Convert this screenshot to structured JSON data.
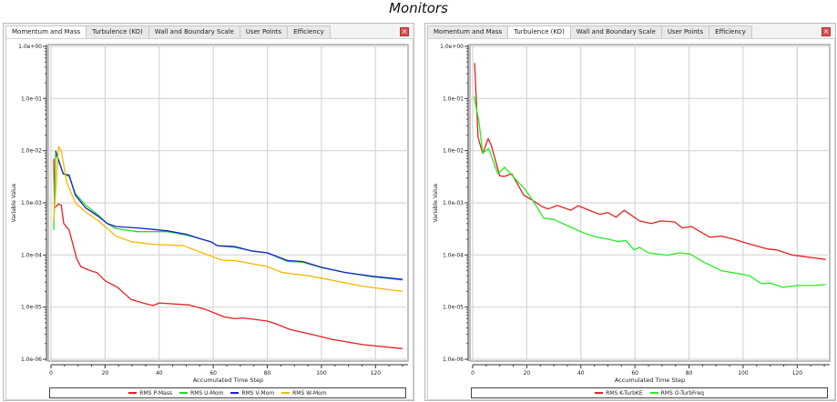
{
  "title": "Monitors",
  "tabs": [
    "Momentum and Mass",
    "Turbulence (KO)",
    "Wall and Boundary Scale",
    "User Points",
    "Efficiency"
  ],
  "chart_data": [
    {
      "type": "line",
      "active_tab": 0,
      "xlabel": "Accumulated Time Step",
      "ylabel": "Variable Value",
      "xlim": [
        0,
        131
      ],
      "ylim": [
        1e-06,
        1
      ],
      "yscale": "log",
      "xticks": [
        0,
        20,
        40,
        60,
        80,
        100,
        120
      ],
      "yticks": [
        "1.0e+00",
        "1.0e-01",
        "1.0e-02",
        "1.0e-03",
        "1.0e-04",
        "1.0e-05",
        "1.0e-06"
      ],
      "grid": true,
      "legend": "bottom",
      "series": [
        {
          "name": "RMS P-Mass",
          "color": "#e8201e",
          "points": [
            [
              1,
              0.007
            ],
            [
              1.3,
              0.0008
            ],
            [
              2.8,
              0.00095
            ],
            [
              3.8,
              0.0009
            ],
            [
              4.7,
              0.0004
            ],
            [
              6.7,
              0.0003
            ],
            [
              9.5,
              8.5e-05
            ],
            [
              11,
              6e-05
            ],
            [
              14.5,
              5e-05
            ],
            [
              17,
              4.6e-05
            ],
            [
              20,
              3.2e-05
            ],
            [
              24.6,
              2.4e-05
            ],
            [
              29.6,
              1.4e-05
            ],
            [
              34,
              1.2e-05
            ],
            [
              37.7,
              1.07e-05
            ],
            [
              40,
              1.2e-05
            ],
            [
              51,
              1.1e-05
            ],
            [
              57.2,
              9e-06
            ],
            [
              64,
              6.5e-06
            ],
            [
              68,
              6e-06
            ],
            [
              71,
              6.2e-06
            ],
            [
              80,
              5.4e-06
            ],
            [
              83,
              4.8e-06
            ],
            [
              88.5,
              3.7e-06
            ],
            [
              97.6,
              2.9e-06
            ],
            [
              104,
              2.4e-06
            ],
            [
              115.5,
              1.9e-06
            ],
            [
              130,
              1.6e-06
            ]
          ]
        },
        {
          "name": "RMS U-Mom",
          "color": "#22dd22",
          "points": [
            [
              1,
              0.0003
            ],
            [
              1.7,
              0.009
            ],
            [
              4.5,
              0.0036
            ],
            [
              6.7,
              0.0032
            ],
            [
              9,
              0.0015
            ],
            [
              12.8,
              0.0009
            ],
            [
              17.5,
              0.00058
            ],
            [
              20.8,
              0.0004
            ],
            [
              24,
              0.00032
            ],
            [
              32,
              0.00028
            ],
            [
              37.7,
              0.00028
            ],
            [
              43,
              0.00028
            ],
            [
              50,
              0.00024
            ],
            [
              54.5,
              0.00021
            ],
            [
              59,
              0.00018
            ],
            [
              61.6,
              0.00015
            ],
            [
              68,
              0.00014
            ],
            [
              74,
              0.00012
            ],
            [
              80,
              0.00011
            ],
            [
              87.5,
              7.5e-05
            ],
            [
              93,
              7.3e-05
            ],
            [
              100,
              5.7e-05
            ],
            [
              109,
              4.6e-05
            ],
            [
              119,
              3.8e-05
            ],
            [
              130,
              3.3e-05
            ]
          ]
        },
        {
          "name": "RMS V-Mom",
          "color": "#1a22cc",
          "points": [
            [
              1.7,
              0.01
            ],
            [
              4.5,
              0.0036
            ],
            [
              6.7,
              0.0034
            ],
            [
              9,
              0.0014
            ],
            [
              12.8,
              0.0008
            ],
            [
              17.5,
              0.00055
            ],
            [
              20.8,
              0.0004
            ],
            [
              24,
              0.00035
            ],
            [
              32,
              0.00033
            ],
            [
              37.7,
              0.00031
            ],
            [
              43,
              0.00029
            ],
            [
              50,
              0.00025
            ],
            [
              54.5,
              0.00021
            ],
            [
              59,
              0.00018
            ],
            [
              61.6,
              0.00015
            ],
            [
              68,
              0.000145
            ],
            [
              74,
              0.00012
            ],
            [
              80,
              0.00011
            ],
            [
              87.5,
              7.8e-05
            ],
            [
              93,
              7.5e-05
            ],
            [
              100,
              5.8e-05
            ],
            [
              109,
              4.6e-05
            ],
            [
              119,
              3.9e-05
            ],
            [
              130,
              3.4e-05
            ]
          ]
        },
        {
          "name": "RMS W-Mom",
          "color": "#f5b800",
          "points": [
            [
              1,
              0.00045
            ],
            [
              2.8,
              0.012
            ],
            [
              3.8,
              0.01
            ],
            [
              5.7,
              0.0026
            ],
            [
              9,
              0.001
            ],
            [
              12.8,
              0.00067
            ],
            [
              17.5,
              0.00045
            ],
            [
              24,
              0.00023
            ],
            [
              29.6,
              0.00018
            ],
            [
              37.7,
              0.00016
            ],
            [
              49,
              0.00015
            ],
            [
              57,
              0.000105
            ],
            [
              63,
              8e-05
            ],
            [
              68,
              7.8e-05
            ],
            [
              80,
              6e-05
            ],
            [
              85.6,
              4.6e-05
            ],
            [
              95,
              4e-05
            ],
            [
              100,
              3.6e-05
            ],
            [
              115.5,
              2.5e-05
            ],
            [
              130,
              2e-05
            ]
          ]
        }
      ]
    },
    {
      "type": "line",
      "active_tab": 1,
      "xlabel": "Accumulated Time Step",
      "ylabel": "Variable Value",
      "xlim": [
        0,
        131
      ],
      "ylim": [
        1e-06,
        1
      ],
      "yscale": "log",
      "xticks": [
        0,
        20,
        40,
        60,
        80,
        100,
        120
      ],
      "yticks": [
        "1.0e+00",
        "1.0e-01",
        "1.0e-02",
        "1.0e-03",
        "1.0e-04",
        "1.0e-05",
        "1.0e-06"
      ],
      "grid": true,
      "legend": "bottom",
      "series": [
        {
          "name": "RMS K-TurbKE",
          "color": "#e8201e",
          "points": [
            [
              0.7,
              0.48
            ],
            [
              2,
              0.018
            ],
            [
              3.7,
              0.0088
            ],
            [
              5.7,
              0.017
            ],
            [
              6.8,
              0.013
            ],
            [
              10,
              0.0033
            ],
            [
              11.7,
              0.0032
            ],
            [
              14.4,
              0.0036
            ],
            [
              18.9,
              0.0014
            ],
            [
              22.3,
              0.0011
            ],
            [
              25.6,
              0.00085
            ],
            [
              27.9,
              0.00076
            ],
            [
              31.3,
              0.00089
            ],
            [
              36.3,
              0.00072
            ],
            [
              39,
              0.00088
            ],
            [
              43.7,
              0.0007
            ],
            [
              47,
              0.0006
            ],
            [
              49.9,
              0.00065
            ],
            [
              53,
              0.00053
            ],
            [
              56,
              0.00072
            ],
            [
              61.7,
              0.00045
            ],
            [
              66,
              0.0004
            ],
            [
              69.6,
              0.00045
            ],
            [
              74.7,
              0.00043
            ],
            [
              77.5,
              0.00033
            ],
            [
              80.9,
              0.00035
            ],
            [
              87.6,
              0.00022
            ],
            [
              92,
              0.00023
            ],
            [
              96.7,
              0.0002
            ],
            [
              101,
              0.00017
            ],
            [
              109,
              0.00013
            ],
            [
              112.4,
              0.000125
            ],
            [
              118,
              0.0001
            ],
            [
              126,
              8.8e-05
            ],
            [
              130.5,
              8.2e-05
            ]
          ]
        },
        {
          "name": "RMS O-TurbFreq",
          "color": "#22ee22",
          "points": [
            [
              0.5,
              0.11
            ],
            [
              2.3,
              0.037
            ],
            [
              3.7,
              0.009
            ],
            [
              5.9,
              0.011
            ],
            [
              9.3,
              0.0036
            ],
            [
              11.8,
              0.0048
            ],
            [
              19.4,
              0.0018
            ],
            [
              22.8,
              0.001
            ],
            [
              26.2,
              0.00051
            ],
            [
              30,
              0.00048
            ],
            [
              35.8,
              0.00035
            ],
            [
              41.4,
              0.00026
            ],
            [
              45.9,
              0.00022
            ],
            [
              50.4,
              0.0002
            ],
            [
              53.8,
              0.00018
            ],
            [
              56.6,
              0.00019
            ],
            [
              59.7,
              0.000125
            ],
            [
              61.7,
              0.00014
            ],
            [
              65,
              0.00011
            ],
            [
              71.9,
              9.9e-05
            ],
            [
              76.4,
              0.00011
            ],
            [
              80.3,
              0.000105
            ],
            [
              85.4,
              7.3e-05
            ],
            [
              92,
              5e-05
            ],
            [
              99,
              4.3e-05
            ],
            [
              102.3,
              4e-05
            ],
            [
              106.8,
              2.8e-05
            ],
            [
              110,
              2.9e-05
            ],
            [
              114.7,
              2.4e-05
            ],
            [
              120.3,
              2.6e-05
            ],
            [
              126,
              2.6e-05
            ],
            [
              130.5,
              2.7e-05
            ]
          ]
        }
      ]
    }
  ]
}
